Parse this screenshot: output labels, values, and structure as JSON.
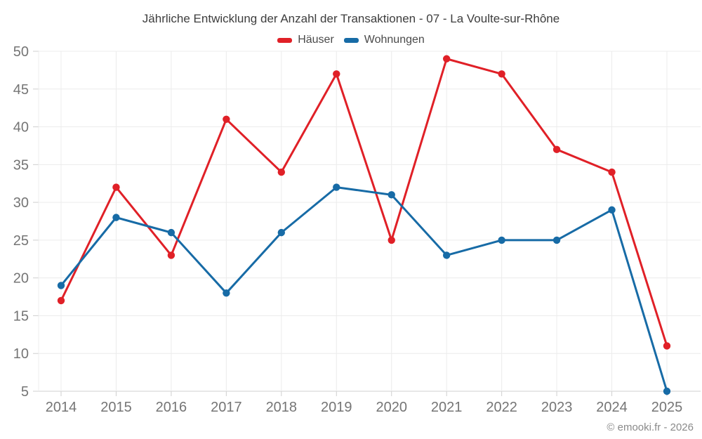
{
  "title": "Jährliche Entwicklung der Anzahl der Transaktionen - 07 - La Voulte-sur-Rhône",
  "legend": [
    {
      "label": "Häuser",
      "color": "#e02027"
    },
    {
      "label": "Wohnungen",
      "color": "#176ba6"
    }
  ],
  "footer": "© emooki.fr - 2026",
  "chart_data": {
    "type": "line",
    "title": "Jährliche Entwicklung der Anzahl der Transaktionen - 07 - La Voulte-sur-Rhône",
    "x": [
      "2014",
      "2015",
      "2016",
      "2017",
      "2018",
      "2019",
      "2020",
      "2021",
      "2022",
      "2023",
      "2024",
      "2025"
    ],
    "series": [
      {
        "name": "Häuser",
        "color": "#e02027",
        "values": [
          17,
          32,
          23,
          41,
          34,
          47,
          25,
          49,
          47,
          37,
          34,
          11
        ]
      },
      {
        "name": "Wohnungen",
        "color": "#176ba6",
        "values": [
          19,
          28,
          26,
          18,
          26,
          32,
          31,
          23,
          25,
          25,
          29,
          5
        ]
      }
    ],
    "xlabel": "",
    "ylabel": "",
    "ylim": [
      5,
      50
    ],
    "ytick_step": 5,
    "grid": true,
    "legend_position": "top",
    "colors": {
      "grid": "#ececec",
      "axis": "#cfcfcf",
      "tick_label": "#757575"
    }
  }
}
